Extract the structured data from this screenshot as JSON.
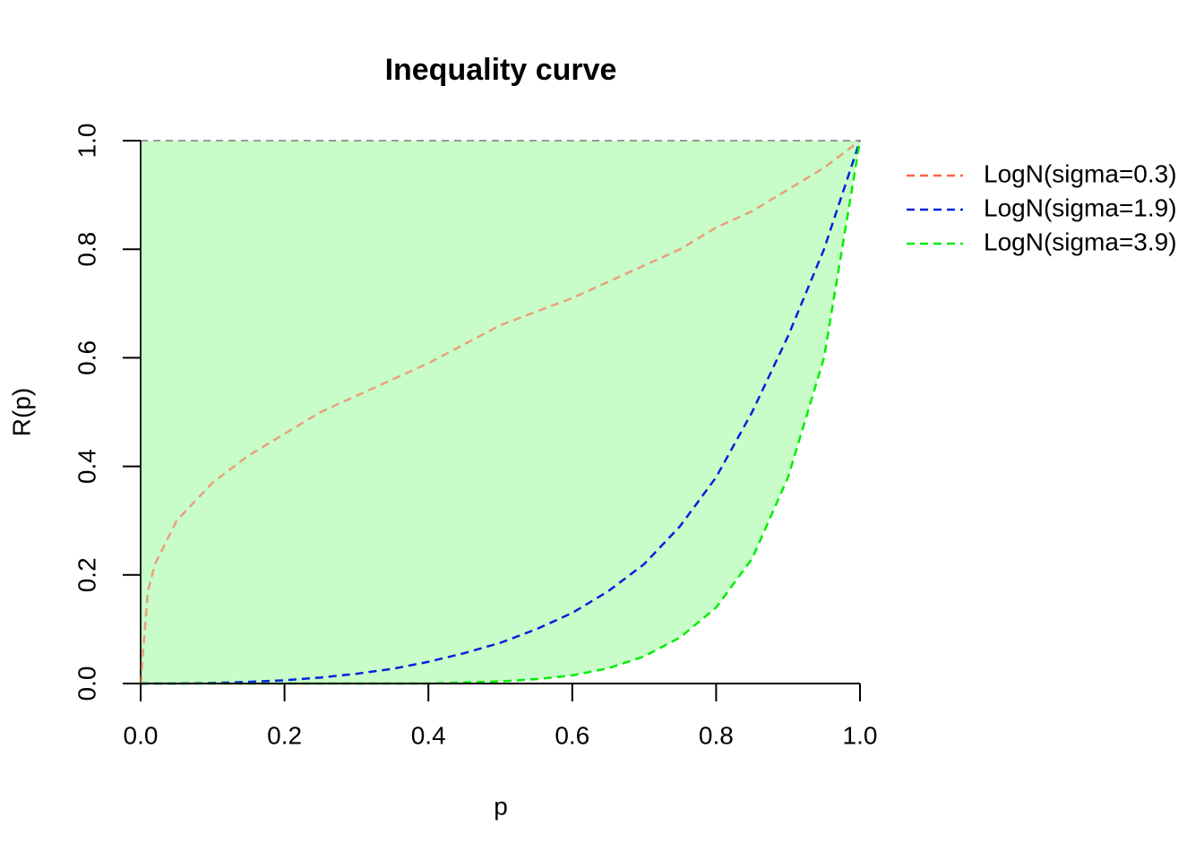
{
  "chart_data": {
    "type": "line",
    "title": "Inequality curve",
    "x_label": "p",
    "y_label": "R(p)",
    "x": [
      0,
      0.01,
      0.02,
      0.05,
      0.1,
      0.15,
      0.2,
      0.25,
      0.3,
      0.35,
      0.4,
      0.45,
      0.5,
      0.55,
      0.6,
      0.65,
      0.7,
      0.75,
      0.8,
      0.85,
      0.9,
      0.95,
      1
    ],
    "series": [
      {
        "name": "LogN(sigma=0.3)",
        "color": "#ff6347",
        "fill": "#a6c0b0",
        "values": [
          0,
          0.17,
          0.22,
          0.3,
          0.37,
          0.42,
          0.46,
          0.5,
          0.53,
          0.56,
          0.59,
          0.625,
          0.66,
          0.685,
          0.71,
          0.74,
          0.77,
          0.8,
          0.84,
          0.87,
          0.91,
          0.95,
          1
        ]
      },
      {
        "name": "LogN(sigma=1.9)",
        "color": "#0022dd",
        "fill": "#a4d8d0",
        "values": [
          0,
          0,
          0,
          0,
          0.001,
          0.003,
          0.006,
          0.011,
          0.018,
          0.027,
          0.04,
          0.056,
          0.075,
          0.1,
          0.13,
          0.17,
          0.22,
          0.29,
          0.38,
          0.5,
          0.64,
          0.8,
          1
        ]
      },
      {
        "name": "LogN(sigma=3.9)",
        "color": "#00ee00",
        "fill": "#c8fcc8",
        "values": [
          0,
          0,
          0,
          0,
          0,
          0,
          0,
          0,
          0,
          0,
          0,
          0.002,
          0.004,
          0.008,
          0.015,
          0.028,
          0.05,
          0.085,
          0.14,
          0.23,
          0.38,
          0.6,
          1
        ]
      }
    ],
    "xlim": [
      0,
      1
    ],
    "ylim": [
      0,
      1
    ],
    "xticks": [
      {
        "value": 0,
        "label": "0.0"
      },
      0.2,
      0.4,
      0.6,
      0.8,
      {
        "value": 1,
        "label": "1.0"
      }
    ],
    "yticks": [
      {
        "value": 0,
        "label": "0.0"
      },
      0.2,
      0.4,
      0.6,
      0.8,
      {
        "value": 1,
        "label": "1.0"
      }
    ],
    "legend": "top-right"
  }
}
